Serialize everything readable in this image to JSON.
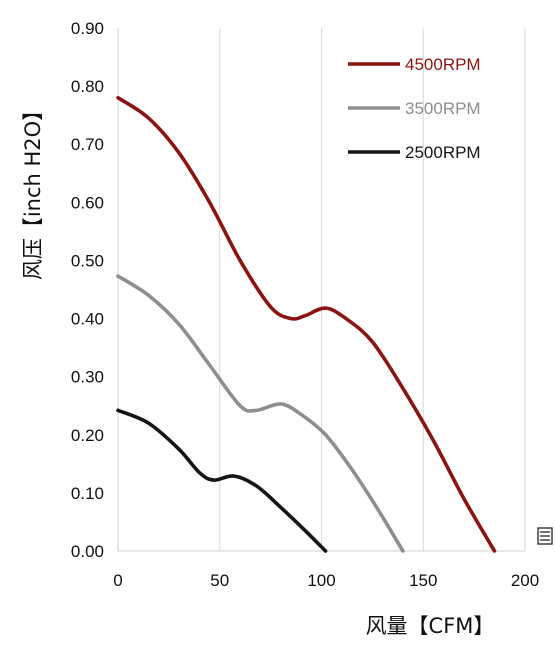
{
  "chart_data": {
    "type": "line",
    "title": "",
    "xlabel": "风量【CFM】",
    "ylabel": "风压【inch H2O】",
    "xlim": [
      0,
      200
    ],
    "ylim": [
      0,
      0.9
    ],
    "x_ticks": [
      "0",
      "50",
      "100",
      "150",
      "200"
    ],
    "y_ticks": [
      "0.00",
      "0.10",
      "0.20",
      "0.30",
      "0.40",
      "0.50",
      "0.60",
      "0.70",
      "0.80",
      "0.90"
    ],
    "grid": {
      "vertical": true,
      "horizontal": false
    },
    "legend_position": "top-right",
    "series": [
      {
        "name": "4500RPM",
        "color": "#8b1412",
        "points": [
          [
            0,
            0.78
          ],
          [
            15,
            0.745
          ],
          [
            30,
            0.685
          ],
          [
            45,
            0.6
          ],
          [
            60,
            0.5
          ],
          [
            75,
            0.42
          ],
          [
            85,
            0.4
          ],
          [
            92,
            0.405
          ],
          [
            102,
            0.418
          ],
          [
            112,
            0.4
          ],
          [
            125,
            0.36
          ],
          [
            140,
            0.28
          ],
          [
            155,
            0.19
          ],
          [
            170,
            0.09
          ],
          [
            185,
            0.0
          ]
        ]
      },
      {
        "name": "3500RPM",
        "color": "#8e8e8e",
        "points": [
          [
            0,
            0.473
          ],
          [
            15,
            0.44
          ],
          [
            30,
            0.39
          ],
          [
            45,
            0.32
          ],
          [
            60,
            0.25
          ],
          [
            68,
            0.242
          ],
          [
            80,
            0.253
          ],
          [
            90,
            0.235
          ],
          [
            102,
            0.2
          ],
          [
            115,
            0.14
          ],
          [
            128,
            0.07
          ],
          [
            140,
            0.0
          ]
        ]
      },
      {
        "name": "2500RPM",
        "color": "#151515",
        "points": [
          [
            0,
            0.242
          ],
          [
            15,
            0.22
          ],
          [
            30,
            0.175
          ],
          [
            40,
            0.135
          ],
          [
            47,
            0.122
          ],
          [
            57,
            0.129
          ],
          [
            68,
            0.112
          ],
          [
            80,
            0.075
          ],
          [
            92,
            0.035
          ],
          [
            102,
            0.0
          ]
        ]
      }
    ]
  }
}
